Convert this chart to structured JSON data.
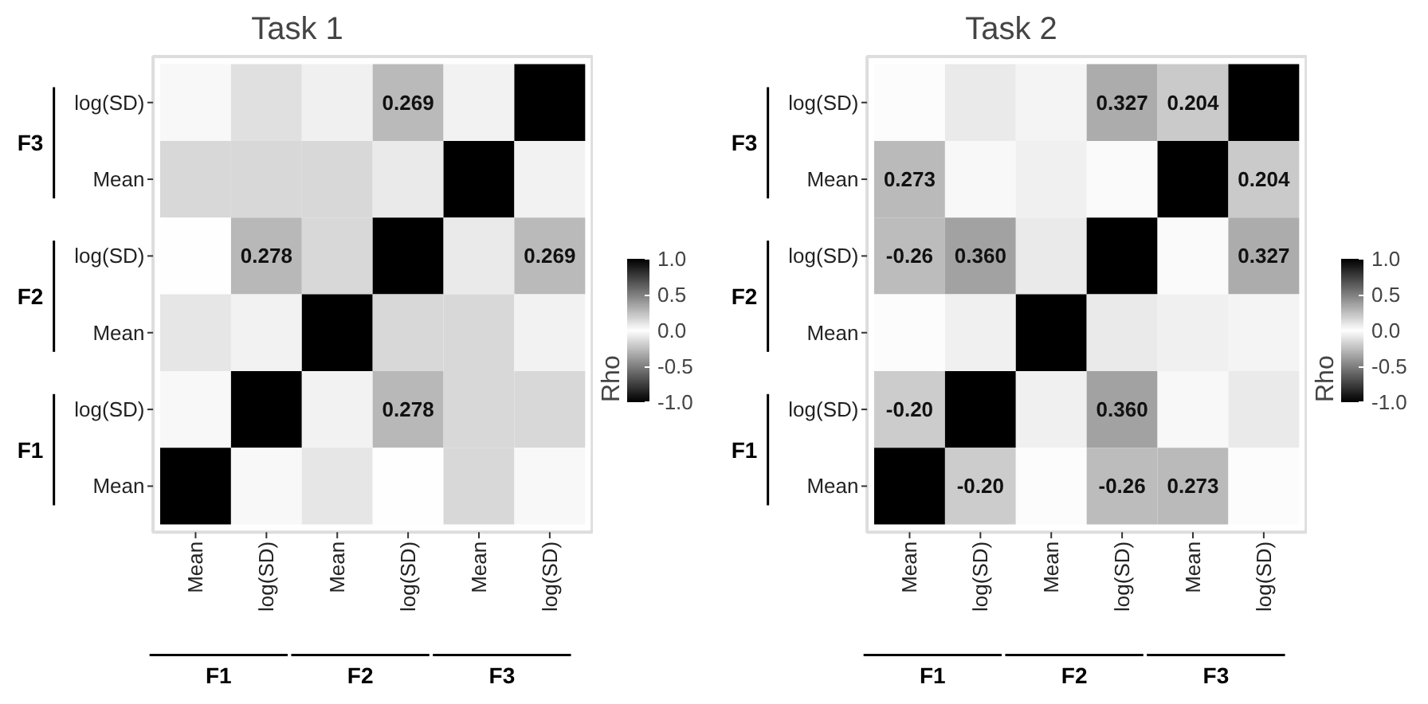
{
  "chart_data": [
    {
      "type": "heatmap",
      "title": "Task 1",
      "clabel": "Rho",
      "categories": [
        "Mean",
        "log(SD)",
        "Mean",
        "log(SD)",
        "Mean",
        "log(SD)"
      ],
      "y_categories": [
        "log(SD)",
        "Mean",
        "log(SD)",
        "Mean",
        "log(SD)",
        "Mean"
      ],
      "cells": [
        [
          0.03,
          0.12,
          0.06,
          0.269,
          0.05,
          1
        ],
        [
          0.15,
          0.15,
          0.15,
          0.08,
          1,
          0.05
        ],
        [
          0.0,
          0.278,
          0.15,
          1,
          0.08,
          0.269
        ],
        [
          0.1,
          0.05,
          1,
          0.15,
          0.15,
          0.05
        ],
        [
          0.03,
          1,
          0.05,
          0.278,
          0.15,
          0.15
        ],
        [
          1,
          0.03,
          0.1,
          0.0,
          0.15,
          0.03
        ]
      ],
      "cell_labels": [
        [
          null,
          null,
          null,
          "0.269",
          null,
          null
        ],
        [
          null,
          null,
          null,
          null,
          null,
          null
        ],
        [
          null,
          "0.278",
          null,
          null,
          null,
          "0.269"
        ],
        [
          null,
          null,
          null,
          null,
          null,
          null
        ],
        [
          null,
          null,
          null,
          "0.278",
          null,
          null
        ],
        [
          null,
          null,
          null,
          null,
          null,
          null
        ]
      ],
      "clim": [
        -1.0,
        1.0
      ],
      "cticks": [
        {
          "value": 1,
          "label": "1.0"
        },
        {
          "value": 0.5,
          "label": "0.5"
        },
        {
          "value": 0,
          "label": "0.0"
        },
        {
          "value": -0.5,
          "label": "-0.5"
        },
        {
          "value": -1,
          "label": "-1.0"
        }
      ],
      "annotations": [
        "F1",
        "F2",
        "F3",
        "F3",
        "F2",
        "F1"
      ]
    },
    {
      "type": "heatmap",
      "title": "Task 2",
      "clabel": "Rho",
      "categories": [
        "Mean",
        "log(SD)",
        "Mean",
        "log(SD)",
        "Mean",
        "log(SD)"
      ],
      "y_categories": [
        "log(SD)",
        "Mean",
        "log(SD)",
        "Mean",
        "log(SD)",
        "Mean"
      ],
      "cells": [
        [
          0.01,
          0.08,
          0.04,
          0.327,
          0.204,
          1
        ],
        [
          0.273,
          0.03,
          0.06,
          0.02,
          1,
          0.204
        ],
        [
          -0.26,
          0.36,
          0.08,
          1,
          0.02,
          0.327
        ],
        [
          0.01,
          0.06,
          1,
          0.08,
          0.06,
          0.04
        ],
        [
          -0.2,
          1,
          0.06,
          0.36,
          0.03,
          0.08
        ],
        [
          1,
          -0.2,
          0.01,
          -0.26,
          0.273,
          0.01
        ]
      ],
      "cell_labels": [
        [
          null,
          null,
          null,
          "0.327",
          "0.204",
          null
        ],
        [
          "0.273",
          null,
          null,
          null,
          null,
          "0.204"
        ],
        [
          "-0.26",
          "0.360",
          null,
          null,
          null,
          "0.327"
        ],
        [
          null,
          null,
          null,
          null,
          null,
          null
        ],
        [
          "-0.20",
          null,
          null,
          "0.360",
          null,
          null
        ],
        [
          null,
          "-0.20",
          null,
          "-0.26",
          "0.273",
          null
        ]
      ],
      "clim": [
        -1.0,
        1.0
      ],
      "cticks": [
        {
          "value": 1,
          "label": "1.0"
        },
        {
          "value": 0.5,
          "label": "0.5"
        },
        {
          "value": 0,
          "label": "0.0"
        },
        {
          "value": -0.5,
          "label": "-0.5"
        },
        {
          "value": -1,
          "label": "-1.0"
        }
      ],
      "annotations": [
        "F1",
        "F2",
        "F3",
        "F3",
        "F2",
        "F1"
      ]
    }
  ]
}
